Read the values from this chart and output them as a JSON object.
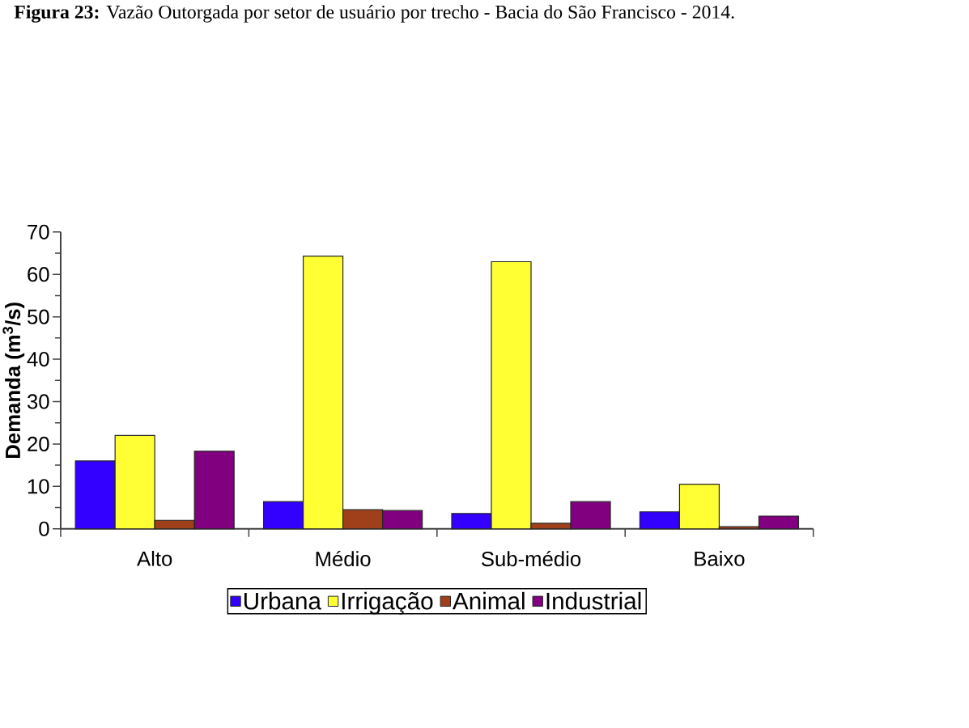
{
  "chart_data": {
    "type": "bar",
    "title": "**Figura 23:** Vazão Outorgada por setor de usuário por trecho - Bacia do São Francisco - 2014.",
    "ylabel": "Demanda (m$^{3}$/s)",
    "categories": [
      "Alto",
      "Médio",
      "Sub-médio",
      "Baixo"
    ],
    "series": [
      {
        "name": "Urbana",
        "color": "#3300ff",
        "values": [
          16,
          6.4,
          3.6,
          4
        ]
      },
      {
        "name": "Irrigação",
        "color": "#ffff33",
        "values": [
          22,
          64.3,
          63,
          10.5
        ]
      },
      {
        "name": "Animal",
        "color": "#a0401a",
        "values": [
          2,
          4.5,
          1.3,
          0.5
        ]
      },
      {
        "name": "Industrial",
        "color": "#800080",
        "values": [
          18.3,
          4.3,
          6.4,
          3
        ]
      }
    ],
    "ylim": [
      0,
      70
    ],
    "yticks": [
      0,
      10,
      20,
      30,
      40,
      50,
      60,
      70
    ],
    "grid": false,
    "legend": "bottom"
  }
}
